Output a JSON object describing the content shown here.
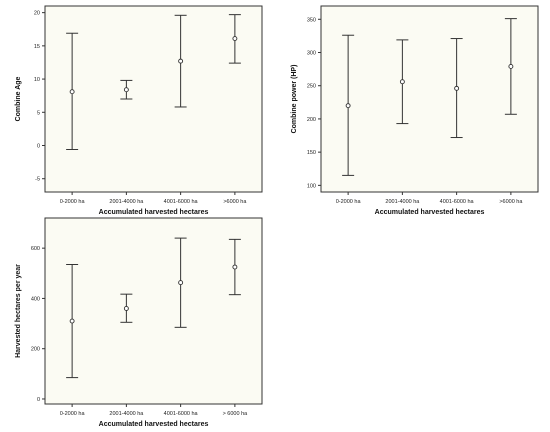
{
  "chart_data": [
    {
      "type": "errorbar",
      "title": "",
      "xlabel": "Accumulated harvested hectares",
      "ylabel": "Combine Age",
      "categories": [
        "0-2000 ha",
        "2001-4000 ha",
        "4001-6000 ha",
        ">6000 ha"
      ],
      "mean": [
        8.1,
        8.4,
        12.7,
        16.1
      ],
      "lower": [
        -0.6,
        7.0,
        5.8,
        12.4
      ],
      "upper": [
        16.9,
        9.8,
        19.6,
        19.7
      ],
      "ylim": [
        -7,
        21
      ],
      "yticks": [
        -5,
        0,
        5,
        10,
        15,
        20
      ],
      "grid": false
    },
    {
      "type": "errorbar",
      "title": "",
      "xlabel": "Accumulated harvested hectares",
      "ylabel": "Combine power (HP)",
      "categories": [
        "0-2000 ha",
        "2001-4000 ha",
        "4001-6000 ha",
        ">6000 ha"
      ],
      "mean": [
        220,
        256,
        246,
        279
      ],
      "lower": [
        115,
        193,
        172,
        207
      ],
      "upper": [
        326,
        319,
        321,
        351
      ],
      "ylim": [
        90,
        370
      ],
      "yticks": [
        100,
        150,
        200,
        250,
        300,
        350
      ],
      "grid": false
    },
    {
      "type": "errorbar",
      "title": "",
      "xlabel": "Accumulated harvested hectares",
      "ylabel": "Harvested hectares per year",
      "categories": [
        "0-2000 ha",
        "2001-4000 ha",
        "4001-6000 ha",
        "> 6000 ha"
      ],
      "mean": [
        310,
        360,
        463,
        525
      ],
      "lower": [
        85,
        305,
        285,
        415
      ],
      "upper": [
        535,
        417,
        640,
        635
      ],
      "ylim": [
        -20,
        720
      ],
      "yticks": [
        0,
        200,
        400,
        600
      ],
      "grid": false
    }
  ]
}
